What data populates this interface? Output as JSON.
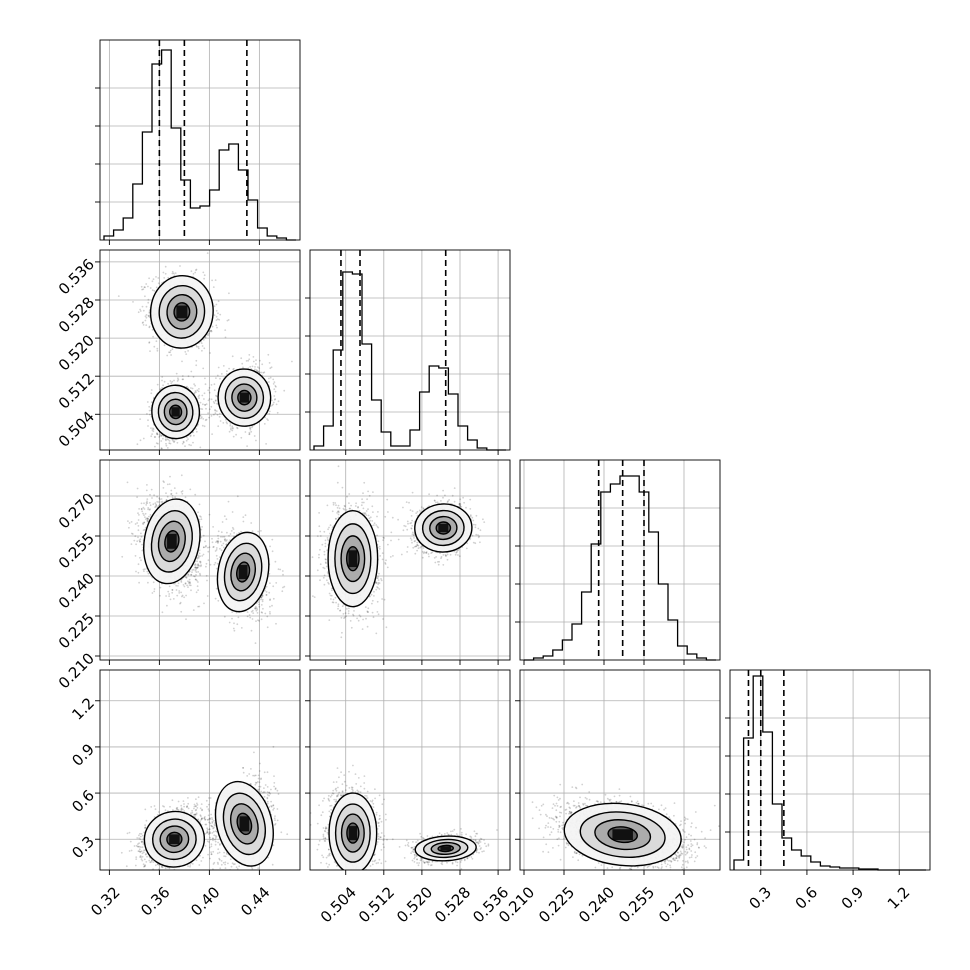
{
  "chart_data": {
    "type": "corner",
    "description_variables": 4,
    "variables": [
      {
        "range": [
          0.3125,
          0.4725
        ],
        "ticks": [
          0.32,
          0.36,
          0.4,
          0.44
        ],
        "tick_labels": [
          "0.32",
          "0.36",
          "0.40",
          "0.44"
        ],
        "quantiles": [
          0.36,
          0.38,
          0.43
        ]
      },
      {
        "range": [
          0.4965,
          0.5385
        ],
        "ticks": [
          0.504,
          0.512,
          0.52,
          0.528,
          0.536
        ],
        "tick_labels": [
          "0.504",
          "0.512",
          "0.520",
          "0.528",
          "0.536"
        ],
        "quantiles": [
          0.503,
          0.507,
          0.525
        ]
      },
      {
        "range": [
          0.2085,
          0.2835
        ],
        "ticks": [
          0.21,
          0.225,
          0.24,
          0.255,
          0.27
        ],
        "tick_labels": [
          "0.210",
          "0.225",
          "0.240",
          "0.255",
          "0.270"
        ],
        "quantiles": [
          0.238,
          0.247,
          0.255
        ]
      },
      {
        "range": [
          0.1,
          1.4
        ],
        "ticks": [
          0.3,
          0.6,
          0.9,
          1.2
        ],
        "tick_labels": [
          "0.3",
          "0.6",
          "0.9",
          "1.2"
        ],
        "quantiles": [
          0.22,
          0.3,
          0.45
        ]
      }
    ],
    "histograms": [
      {
        "variable": 0,
        "bins": 20,
        "counts": [
          0.02,
          0.05,
          0.11,
          0.28,
          0.54,
          0.88,
          0.95,
          0.56,
          0.3,
          0.16,
          0.17,
          0.25,
          0.45,
          0.48,
          0.35,
          0.2,
          0.06,
          0.02,
          0.01,
          0.0
        ]
      },
      {
        "variable": 1,
        "bins": 20,
        "counts": [
          0.02,
          0.12,
          0.5,
          0.89,
          0.88,
          0.53,
          0.25,
          0.09,
          0.02,
          0.02,
          0.1,
          0.29,
          0.42,
          0.41,
          0.28,
          0.12,
          0.05,
          0.01,
          0.0,
          0.0
        ]
      },
      {
        "variable": 2,
        "bins": 20,
        "counts": [
          0.0,
          0.01,
          0.02,
          0.05,
          0.1,
          0.18,
          0.34,
          0.58,
          0.84,
          0.88,
          0.92,
          0.92,
          0.84,
          0.64,
          0.38,
          0.2,
          0.07,
          0.03,
          0.01,
          0.0
        ]
      },
      {
        "variable": 3,
        "bins": 20,
        "counts": [
          0.05,
          0.66,
          0.97,
          0.69,
          0.33,
          0.16,
          0.1,
          0.07,
          0.04,
          0.02,
          0.015,
          0.01,
          0.01,
          0.005,
          0.005,
          0.0,
          0.0,
          0.0,
          0.0,
          0.0
        ]
      }
    ],
    "scatter_panels": [
      {
        "x": 0,
        "y": 1,
        "clusters": [
          {
            "mx": 0.378,
            "my": 0.5255,
            "sx": 0.0125,
            "sy": 0.0038,
            "rho": -0.1,
            "n": 1200
          },
          {
            "mx": 0.373,
            "my": 0.5045,
            "sx": 0.0095,
            "sy": 0.0028,
            "rho": 0.1,
            "n": 1100
          },
          {
            "mx": 0.428,
            "my": 0.5075,
            "sx": 0.0105,
            "sy": 0.003,
            "rho": 0.1,
            "n": 1000
          }
        ]
      },
      {
        "x": 0,
        "y": 2,
        "clusters": [
          {
            "mx": 0.37,
            "my": 0.253,
            "sx": 0.011,
            "sy": 0.008,
            "rho": -0.2,
            "n": 1900
          },
          {
            "mx": 0.427,
            "my": 0.2415,
            "sx": 0.01,
            "sy": 0.0075,
            "rho": -0.2,
            "n": 1200
          }
        ]
      },
      {
        "x": 1,
        "y": 2,
        "clusters": [
          {
            "mx": 0.5055,
            "my": 0.2465,
            "sx": 0.0026,
            "sy": 0.009,
            "rho": 0.0,
            "n": 1900
          },
          {
            "mx": 0.5245,
            "my": 0.258,
            "sx": 0.003,
            "sy": 0.0045,
            "rho": 0.1,
            "n": 1200
          }
        ]
      },
      {
        "x": 0,
        "y": 3,
        "clusters": [
          {
            "mx": 0.372,
            "my": 0.3,
            "sx": 0.012,
            "sy": 0.09,
            "rho": 0.3,
            "n": 1900
          },
          {
            "mx": 0.428,
            "my": 0.4,
            "sx": 0.011,
            "sy": 0.14,
            "rho": 0.3,
            "n": 1200
          }
        ]
      },
      {
        "x": 1,
        "y": 3,
        "clusters": [
          {
            "mx": 0.5055,
            "my": 0.34,
            "sx": 0.0025,
            "sy": 0.13,
            "rho": 0.0,
            "n": 1900
          },
          {
            "mx": 0.525,
            "my": 0.24,
            "sx": 0.0032,
            "sy": 0.04,
            "rho": 0.2,
            "n": 1200
          }
        ]
      },
      {
        "x": 2,
        "y": 3,
        "clusters": [
          {
            "mx": 0.247,
            "my": 0.33,
            "sx": 0.011,
            "sy": 0.1,
            "rho": -0.35,
            "n": 3100
          }
        ]
      }
    ],
    "grid": true,
    "colors": {
      "line": "#000000",
      "grid": "#b0b0b0",
      "points": "#000000"
    }
  }
}
